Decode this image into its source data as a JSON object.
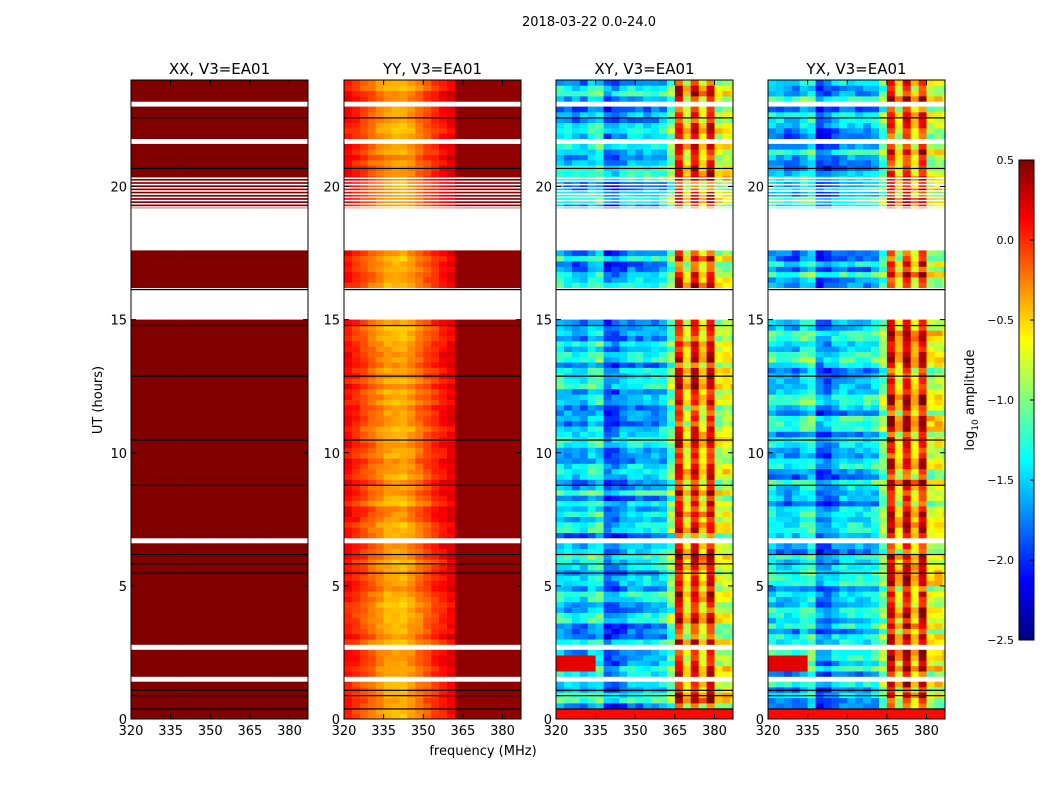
{
  "chart_data": {
    "type": "heatmap",
    "title": "2018-03-22 0.0-24.0",
    "xlabel": "frequency (MHz)",
    "ylabel": "UT (hours)",
    "xlim": [
      320,
      387
    ],
    "ylim": [
      0,
      24
    ],
    "xticks": [
      320,
      335,
      350,
      365,
      380
    ],
    "yticks": [
      0,
      5,
      10,
      15,
      20
    ],
    "colorbar": {
      "label": "log",
      "label_sub": "10",
      "label_rest": " amplitude",
      "colormap": "jet",
      "range": [
        -2.5,
        0.5
      ],
      "ticks": [
        "0.5",
        "0.0",
        "−0.5",
        "−1.0",
        "−1.5",
        "−2.0",
        "−2.5"
      ],
      "tick_values": [
        0.5,
        0.0,
        -0.5,
        -1.0,
        -1.5,
        -2.0,
        -2.5
      ]
    },
    "flagged_white_hours": [
      [
        23.0,
        23.2
      ],
      [
        21.5,
        21.7
      ],
      [
        17.6,
        19.2
      ],
      [
        15.0,
        16.1
      ],
      [
        13.9,
        14.0
      ],
      [
        12.5,
        12.6
      ],
      [
        11.9,
        12.0
      ],
      [
        6.6,
        6.75
      ],
      [
        2.7,
        2.8
      ],
      [
        1.5,
        1.55
      ]
    ],
    "striped_hours": [
      19.2,
      20.3
    ],
    "black_line_hours": [
      0.4,
      0.9,
      1.1,
      6.2,
      5.85,
      5.5,
      10.5,
      8.8,
      12.9,
      14.8,
      16.15,
      20.7,
      22.6
    ],
    "panels": [
      {
        "title": "XX, V3=EA01",
        "freq_profile_mhz": [
          320,
          387
        ],
        "freq_profile_log_amp": [
          0.5,
          0.5
        ],
        "row_noise": 0.0
      },
      {
        "title": "YY, V3=EA01",
        "freq_profile_mhz": [
          320,
          328,
          336,
          343,
          350,
          356,
          361,
          363,
          387
        ],
        "freq_profile_log_amp": [
          0.15,
          -0.1,
          -0.35,
          -0.4,
          -0.15,
          0.05,
          0.2,
          0.45,
          0.45
        ],
        "row_noise": 0.1
      },
      {
        "title": "XY, V3=EA01",
        "freq_profile_mhz": [
          320,
          330,
          336,
          340,
          348,
          358,
          363,
          366,
          369,
          372,
          375,
          378,
          381,
          384,
          387
        ],
        "freq_profile_log_amp": [
          -1.4,
          -1.6,
          -1.2,
          -1.9,
          -1.5,
          -1.5,
          -1.3,
          0.3,
          -0.8,
          0.3,
          -0.7,
          0.3,
          -0.8,
          -0.7,
          -0.8
        ],
        "row_noise": 0.35
      },
      {
        "title": "YX, V3=EA01",
        "freq_profile_mhz": [
          320,
          330,
          336,
          340,
          348,
          358,
          363,
          366,
          369,
          372,
          375,
          378,
          381,
          384,
          387
        ],
        "freq_profile_log_amp": [
          -1.4,
          -1.6,
          -1.2,
          -1.9,
          -1.5,
          -1.5,
          -1.3,
          0.3,
          -0.8,
          0.3,
          -0.7,
          0.3,
          -0.8,
          -0.7,
          -0.8
        ],
        "row_noise": 0.35
      }
    ]
  }
}
